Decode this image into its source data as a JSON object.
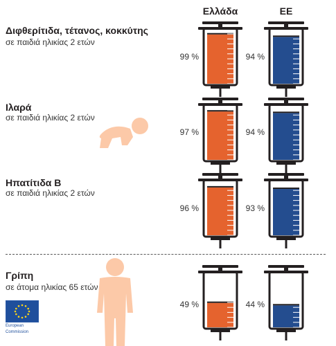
{
  "columns": {
    "greece": "Ελλάδα",
    "eu": "ΕΕ"
  },
  "colors": {
    "greece": "#e5632e",
    "eu": "#244d8f",
    "outline": "#231f20",
    "figure": "#fcc9a8"
  },
  "rows": [
    {
      "title": "Διφθερίτιδα, τέτανος, κοκκύτης",
      "subtitle": "σε παιδιά ηλικίας 2 ετών",
      "greece_label": "99 %",
      "eu_label": "94 %"
    },
    {
      "title": "Ιλαρά",
      "subtitle": "σε παιδιά ηλικίας 2 ετών",
      "greece_label": "97 %",
      "eu_label": "94 %"
    },
    {
      "title": "Ηπατίτιδα Β",
      "subtitle": "σε παιδιά ηλικίας 2 ετών",
      "greece_label": "96 %",
      "eu_label": "93 %"
    },
    {
      "title": "Γρίπη",
      "subtitle": "σε άτομα ηλικίας 65 ετών και άνω",
      "greece_label": "49 %",
      "eu_label": "44 %"
    }
  ],
  "logo": {
    "line1": "European",
    "line2": "Commission"
  },
  "chart_data": {
    "type": "bar",
    "categories": [
      "Διφθερίτιδα, τέτανος, κοκκύτης",
      "Ιλαρά",
      "Ηπατίτιδα Β",
      "Γρίπη"
    ],
    "series": [
      {
        "name": "Ελλάδα",
        "values": [
          99,
          97,
          96,
          49
        ]
      },
      {
        "name": "ΕΕ",
        "values": [
          94,
          94,
          93,
          44
        ]
      }
    ],
    "ylim": [
      0,
      100
    ],
    "unit": "%"
  }
}
